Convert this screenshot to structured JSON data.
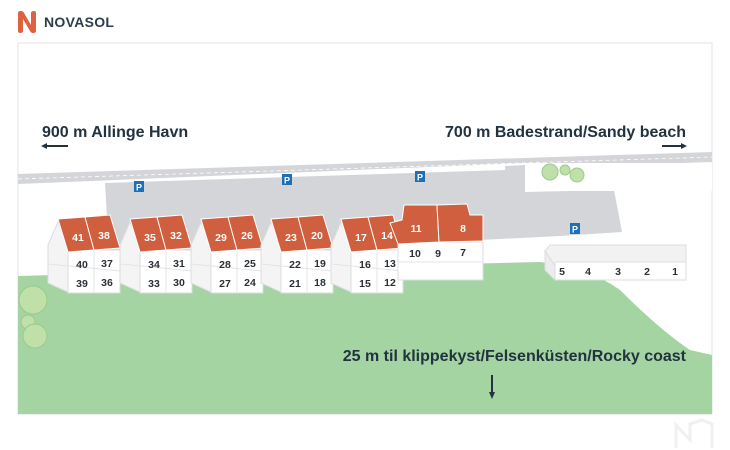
{
  "brand": {
    "name": "NOVASOL",
    "color": "#e0613f"
  },
  "colors": {
    "roof": "#cf5f3f",
    "grass": "#a3d4a2",
    "parking": "#d3d5d8",
    "road": "#d3d5d8",
    "parking_sign": "#1f6fb5",
    "tree": "#bfe0a8",
    "text": "#22323f"
  },
  "labels": {
    "left_direction": "900 m Allinge Havn",
    "right_direction": "700 m Badestrand/Sandy beach",
    "coast": "25 m til klippekyst/Felsenküsten/Rocky coast",
    "parking": "P"
  },
  "icons": [
    "arrow-left-icon",
    "arrow-right-icon",
    "arrow-down-icon",
    "parking-icon",
    "tree-icon"
  ],
  "blocks": [
    {
      "roof": [
        "41",
        "38"
      ],
      "upper": [
        "40",
        "37"
      ],
      "lower": [
        "39",
        "36"
      ]
    },
    {
      "roof": [
        "35",
        "32"
      ],
      "upper": [
        "34",
        "31"
      ],
      "lower": [
        "33",
        "30"
      ]
    },
    {
      "roof": [
        "29",
        "26"
      ],
      "upper": [
        "28",
        "25"
      ],
      "lower": [
        "27",
        "24"
      ]
    },
    {
      "roof": [
        "23",
        "20"
      ],
      "upper": [
        "22",
        "19"
      ],
      "lower": [
        "21",
        "18"
      ]
    },
    {
      "roof": [
        "17",
        "14"
      ],
      "upper": [
        "16",
        "13"
      ],
      "lower": [
        "15",
        "12"
      ]
    }
  ],
  "block6": {
    "roof": [
      "11",
      "8"
    ],
    "ground": [
      "10",
      "9",
      "7"
    ]
  },
  "terrace": [
    "5",
    "4",
    "3",
    "2",
    "1"
  ]
}
